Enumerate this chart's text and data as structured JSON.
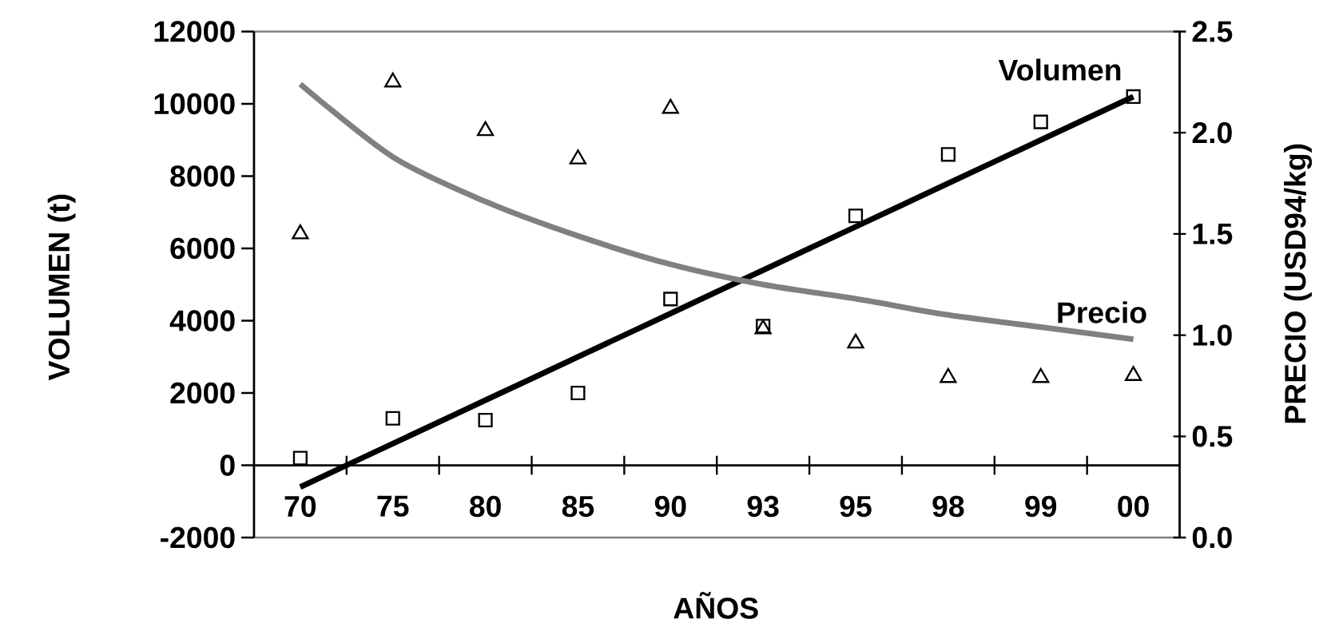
{
  "chart_data": {
    "type": "scatter",
    "xlabel": "AÑOS",
    "ylabel": "VOLUMEN (t)",
    "y2label": "PRECIO (USD94/kg)",
    "categories": [
      "70",
      "75",
      "80",
      "85",
      "90",
      "93",
      "95",
      "98",
      "99",
      "00"
    ],
    "ylim": [
      -2000,
      12000
    ],
    "yticks": [
      -2000,
      0,
      2000,
      4000,
      6000,
      8000,
      10000,
      12000
    ],
    "y2lim": [
      0,
      2.5
    ],
    "y2ticks": [
      {
        "value": 0,
        "label": "0.0"
      },
      {
        "value": 0.5,
        "label": "0.5"
      },
      {
        "value": 1,
        "label": "1.0"
      },
      {
        "value": 1.5,
        "label": "1.5"
      },
      {
        "value": 2,
        "label": "2.0"
      },
      {
        "value": 2.5,
        "label": "2.5"
      }
    ],
    "series": [
      {
        "marker": "square",
        "color": "#000000",
        "values": [
          200,
          1300,
          1250,
          2000,
          4600,
          3850,
          6900,
          8600,
          9500,
          10200
        ]
      },
      {
        "marker": "triangle",
        "axis": "y2",
        "color": "#000000",
        "values": [
          1.5,
          2.25,
          2.01,
          1.87,
          2.12,
          1.03,
          0.96,
          0.79,
          0.79,
          0.8
        ]
      },
      {
        "type": "line",
        "name": "Volumen",
        "color": "#000000",
        "values": [
          -600,
          600,
          1800,
          3000,
          4200,
          5400,
          6600,
          7800,
          9000,
          10200
        ]
      },
      {
        "type": "line",
        "name": "Precio",
        "axis": "y2",
        "color": "#808080",
        "values": [
          2.24,
          1.88,
          1.66,
          1.49,
          1.35,
          1.25,
          1.18,
          1.1,
          1.04,
          0.98
        ]
      }
    ]
  }
}
